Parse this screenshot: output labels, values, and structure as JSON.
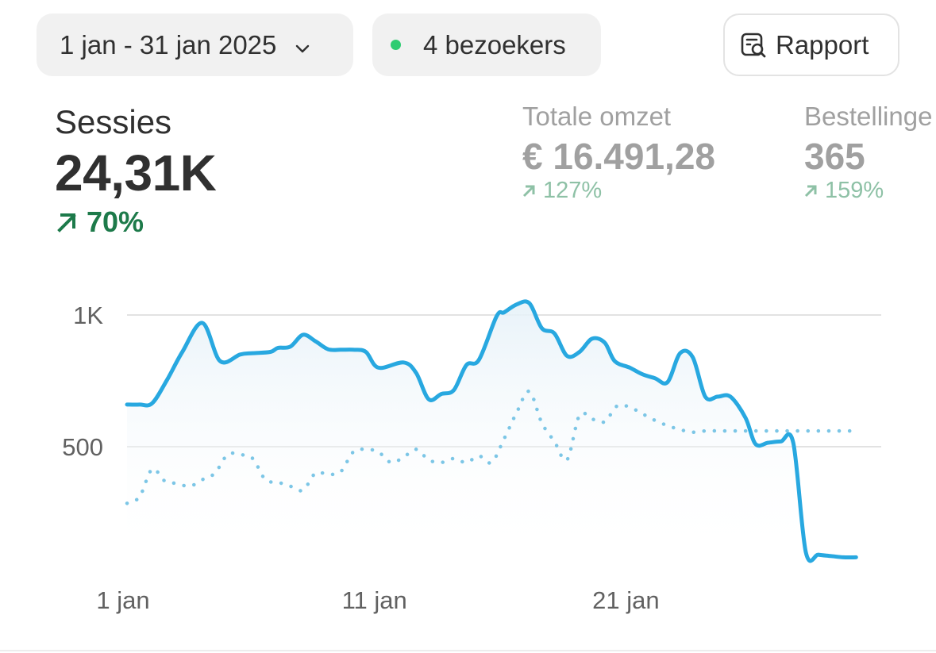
{
  "header": {
    "date_range": "1 jan - 31 jan 2025",
    "visitors_label": "4 bezoekers",
    "visitors_dot_color": "#2ecc71",
    "report_label": "Rapport",
    "report_icon": "report-search-icon",
    "date_chevron_icon": "chevron-down-icon"
  },
  "metrics": {
    "sessions": {
      "label": "Sessies",
      "value": "24,31K",
      "delta": "70%"
    },
    "revenue": {
      "label": "Totale omzet",
      "value": "€ 16.491,28",
      "delta": "127%"
    },
    "orders": {
      "label": "Bestellinge",
      "value": "365",
      "delta": "159%"
    }
  },
  "colors": {
    "primary_line": "#28a8e0",
    "delta_green": "#1d7a4a",
    "delta_green_faded": "#8ec1a6",
    "gridline": "#e2e2e2"
  },
  "chart_data": {
    "type": "line",
    "y_ticks": [
      "1K",
      "500"
    ],
    "y_tick_values": [
      1000,
      500
    ],
    "x_tick_labels": [
      "1 jan",
      "11 jan",
      "21 jan"
    ],
    "x_tick_days": [
      1,
      11,
      21
    ],
    "xlim": [
      1,
      31
    ],
    "ylim": [
      0,
      1100
    ],
    "series": [
      {
        "style": "solid",
        "x": [
          1,
          1.5,
          2,
          2.6,
          3.2,
          4,
          4.7,
          5.5,
          6,
          6.7,
          7,
          7.5,
          8,
          8.5,
          9,
          9.5,
          10,
          10.5,
          11,
          12,
          12.5,
          13,
          13.5,
          14,
          14.5,
          15,
          15.7,
          16,
          16.5,
          17,
          17.5,
          18,
          18.5,
          19,
          19.5,
          20,
          20.4,
          21,
          21.5,
          22,
          22.5,
          23,
          23.5,
          24,
          24.5,
          25,
          25.6,
          26,
          26.5,
          27,
          27.5,
          28,
          28.5,
          29,
          29.5,
          30
        ],
        "values": [
          660,
          660,
          665,
          755,
          860,
          970,
          825,
          850,
          855,
          860,
          875,
          880,
          925,
          900,
          870,
          868,
          868,
          860,
          800,
          820,
          780,
          680,
          700,
          715,
          810,
          830,
          995,
          1010,
          1040,
          1045,
          950,
          930,
          845,
          860,
          910,
          895,
          825,
          800,
          775,
          760,
          745,
          855,
          840,
          690,
          690,
          690,
          610,
          510,
          515,
          520,
          515,
          100,
          90,
          85,
          80,
          80
        ]
      },
      {
        "style": "dotted",
        "x": [
          1,
          1.5,
          2,
          2.5,
          3,
          3.5,
          4,
          4.5,
          5,
          5.5,
          6,
          6.5,
          7,
          7.5,
          8,
          8.5,
          9,
          9.5,
          10,
          10.5,
          11,
          11.5,
          12,
          12.5,
          13,
          13.5,
          14,
          14.5,
          15,
          15.5,
          16,
          16.5,
          17,
          17.5,
          18,
          18.5,
          19,
          19.5,
          20,
          20.5,
          21,
          21.5,
          22,
          22.5,
          23,
          23.5,
          24,
          24.5,
          25,
          25.5,
          26,
          26.5,
          27,
          27.5,
          28,
          28.5,
          29,
          29.5,
          30
        ],
        "values": [
          285,
          310,
          415,
          370,
          360,
          350,
          375,
          400,
          470,
          470,
          455,
          375,
          365,
          350,
          335,
          400,
          395,
          405,
          480,
          490,
          480,
          440,
          460,
          490,
          450,
          440,
          455,
          440,
          465,
          440,
          530,
          630,
          710,
          590,
          520,
          450,
          620,
          605,
          595,
          655,
          650,
          625,
          600,
          580,
          565,
          555,
          560,
          560,
          560,
          560,
          560,
          560,
          560,
          560,
          560,
          560,
          560,
          560,
          560
        ]
      }
    ]
  }
}
